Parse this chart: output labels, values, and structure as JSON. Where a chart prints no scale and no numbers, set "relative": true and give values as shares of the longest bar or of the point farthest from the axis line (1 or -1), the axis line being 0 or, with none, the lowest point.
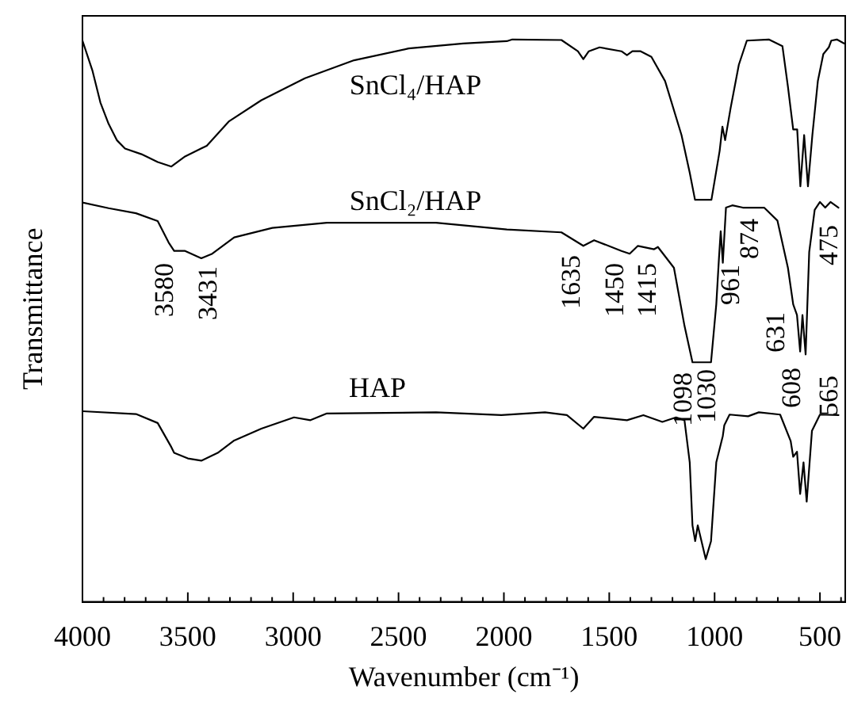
{
  "chart_data": {
    "type": "line",
    "relative": true,
    "marker": "none",
    "line_style": "solid",
    "xlabel": "Wavenumber (cm⁻¹)",
    "ylabel": "Transmittance",
    "xlim": [
      4000,
      380
    ],
    "xticks": [
      4000,
      {
        "value": 3900,
        "label": null
      },
      {
        "value": 3800,
        "label": null
      },
      {
        "value": 3700,
        "label": null
      },
      {
        "value": 3600,
        "label": null
      },
      3500,
      {
        "value": 3400,
        "label": null
      },
      {
        "value": 3300,
        "label": null
      },
      {
        "value": 3200,
        "label": null
      },
      {
        "value": 3100,
        "label": null
      },
      3000,
      {
        "value": 2900,
        "label": null
      },
      {
        "value": 2800,
        "label": null
      },
      {
        "value": 2700,
        "label": null
      },
      {
        "value": 2600,
        "label": null
      },
      2500,
      {
        "value": 2400,
        "label": null
      },
      {
        "value": 2300,
        "label": null
      },
      {
        "value": 2200,
        "label": null
      },
      {
        "value": 2100,
        "label": null
      },
      2000,
      {
        "value": 1900,
        "label": null
      },
      {
        "value": 1800,
        "label": null
      },
      {
        "value": 1700,
        "label": null
      },
      {
        "value": 1600,
        "label": null
      },
      1500,
      {
        "value": 1400,
        "label": null
      },
      {
        "value": 1300,
        "label": null
      },
      {
        "value": 1200,
        "label": null
      },
      {
        "value": 1100,
        "label": null
      },
      1000,
      {
        "value": 900,
        "label": null
      },
      {
        "value": 800,
        "label": null
      },
      {
        "value": 700,
        "label": null
      },
      {
        "value": 600,
        "label": null
      },
      500,
      {
        "value": 400,
        "label": null
      }
    ],
    "series": [
      {
        "name": "SnCl₄/HAP",
        "color": "#000000",
        "x": [
          4000,
          3953,
          3915,
          3876,
          3837,
          3798,
          3720,
          3643,
          3578,
          3513,
          3410,
          3306,
          3151,
          2944,
          2711,
          2452,
          2193,
          1986,
          1960,
          1727,
          1649,
          1623,
          1597,
          1546,
          1442,
          1416,
          1390,
          1351,
          1300,
          1235,
          1157,
          1118,
          1093,
          1015,
          976,
          963,
          950,
          924,
          885,
          847,
          743,
          678,
          652,
          627,
          608,
          593,
          575,
          557,
          536,
          510,
          484,
          458,
          446,
          420,
          386
        ],
        "values": [
          0.998,
          0.945,
          0.888,
          0.85,
          0.821,
          0.806,
          0.796,
          0.782,
          0.774,
          0.792,
          0.811,
          0.854,
          0.892,
          0.931,
          0.963,
          0.984,
          0.993,
          0.997,
          1,
          0.999,
          0.979,
          0.965,
          0.979,
          0.986,
          0.979,
          0.972,
          0.979,
          0.979,
          0.969,
          0.926,
          0.83,
          0.763,
          0.715,
          0.715,
          0.802,
          0.845,
          0.821,
          0.878,
          0.955,
          0.998,
          1,
          0.988,
          0.916,
          0.84,
          0.84,
          0.739,
          0.83,
          0.739,
          0.83,
          0.926,
          0.974,
          0.986,
          0.998,
          1,
          0.993
        ]
      },
      {
        "name": "SnCl₂/HAP",
        "color": "#000000",
        "x": [
          4000,
          3876,
          3746,
          3643,
          3591,
          3565,
          3513,
          3436,
          3384,
          3280,
          3099,
          2840,
          2322,
          1986,
          1727,
          1623,
          1572,
          1442,
          1403,
          1364,
          1287,
          1269,
          1193,
          1143,
          1105,
          1017,
          992,
          979,
          971,
          961,
          946,
          916,
          866,
          765,
          702,
          652,
          627,
          609,
          594,
          583,
          568,
          551,
          525,
          500,
          475,
          450,
          412
        ],
        "values": [
          0.71,
          0.7,
          0.691,
          0.677,
          0.639,
          0.624,
          0.624,
          0.611,
          0.619,
          0.648,
          0.665,
          0.674,
          0.674,
          0.662,
          0.657,
          0.633,
          0.643,
          0.624,
          0.619,
          0.633,
          0.627,
          0.631,
          0.594,
          0.491,
          0.426,
          0.426,
          0.529,
          0.613,
          0.659,
          0.603,
          0.701,
          0.705,
          0.701,
          0.701,
          0.678,
          0.594,
          0.529,
          0.51,
          0.445,
          0.51,
          0.44,
          0.622,
          0.697,
          0.711,
          0.701,
          0.711,
          0.701
        ]
      },
      {
        "name": "HAP",
        "color": "#000000",
        "x": [
          4000,
          3746,
          3643,
          3578,
          3565,
          3500,
          3436,
          3358,
          3280,
          3151,
          2996,
          2918,
          2840,
          2322,
          2012,
          1805,
          1701,
          1623,
          1572,
          1416,
          1338,
          1248,
          1183,
          1143,
          1118,
          1105,
          1092,
          1080,
          1042,
          1017,
          992,
          961,
          954,
          929,
          841,
          790,
          689,
          639,
          627,
          609,
          594,
          578,
          563,
          538,
          500,
          412
        ],
        "values": [
          0.339,
          0.334,
          0.318,
          0.275,
          0.265,
          0.255,
          0.251,
          0.265,
          0.287,
          0.308,
          0.328,
          0.323,
          0.335,
          0.337,
          0.332,
          0.337,
          0.332,
          0.308,
          0.329,
          0.323,
          0.332,
          0.32,
          0.328,
          0.323,
          0.248,
          0.136,
          0.108,
          0.136,
          0.076,
          0.108,
          0.248,
          0.295,
          0.314,
          0.333,
          0.33,
          0.337,
          0.333,
          0.286,
          0.258,
          0.267,
          0.192,
          0.248,
          0.178,
          0.304,
          0.333,
          0.332
        ]
      }
    ],
    "annotations": [
      "3580",
      "3431",
      "1635",
      "1450",
      "1415",
      "961",
      "874",
      "631",
      "475",
      "1098",
      "1030",
      "608",
      "565"
    ]
  }
}
